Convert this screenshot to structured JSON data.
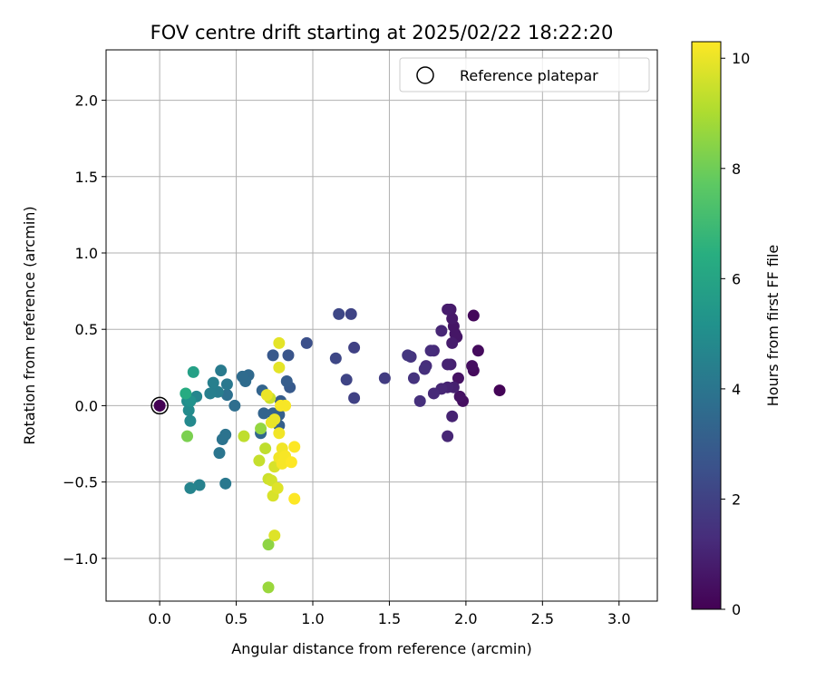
{
  "chart_data": {
    "type": "scatter",
    "title": "FOV centre drift starting at 2025/02/22 18:22:20",
    "xlabel": "Angular distance from reference (arcmin)",
    "ylabel": "Rotation from reference (arcmin)",
    "xlim": [
      -0.35,
      3.25
    ],
    "ylim": [
      -1.28,
      2.33
    ],
    "xticks": [
      0.0,
      0.5,
      1.0,
      1.5,
      2.0,
      2.5,
      3.0
    ],
    "xtick_labels": [
      "0.0",
      "0.5",
      "1.0",
      "1.5",
      "2.0",
      "2.5",
      "3.0"
    ],
    "yticks": [
      -1.0,
      -0.5,
      0.0,
      0.5,
      1.0,
      1.5,
      2.0
    ],
    "ytick_labels": [
      "−1.0",
      "−0.5",
      "0.0",
      "0.5",
      "1.0",
      "1.5",
      "2.0"
    ],
    "grid": true,
    "legend": {
      "placement": "upper-right",
      "entries": [
        "Reference platepar"
      ]
    },
    "reference_point": {
      "x": 0.0,
      "y": 0.0,
      "hours": 0
    },
    "colorbar": {
      "label": "Hours from first FF file",
      "min": 0,
      "max": 10.3,
      "ticks": [
        0,
        2,
        4,
        6,
        8,
        10
      ],
      "tick_labels": [
        "0",
        "2",
        "4",
        "6",
        "8",
        "10"
      ],
      "colormap": "viridis"
    },
    "series": [
      {
        "points": [
          {
            "x": 0.0,
            "y": 0.0,
            "h": 0.0
          },
          {
            "x": 2.22,
            "y": 0.1,
            "h": 0.1
          },
          {
            "x": 2.05,
            "y": 0.59,
            "h": 0.2
          },
          {
            "x": 2.08,
            "y": 0.36,
            "h": 0.3
          },
          {
            "x": 2.05,
            "y": 0.23,
            "h": 0.3
          },
          {
            "x": 2.04,
            "y": 0.26,
            "h": 0.4
          },
          {
            "x": 1.98,
            "y": 0.03,
            "h": 0.4
          },
          {
            "x": 1.96,
            "y": 0.06,
            "h": 0.5
          },
          {
            "x": 1.95,
            "y": 0.18,
            "h": 0.5
          },
          {
            "x": 1.94,
            "y": 0.45,
            "h": 0.6
          },
          {
            "x": 1.93,
            "y": 0.47,
            "h": 0.6
          },
          {
            "x": 1.92,
            "y": 0.52,
            "h": 0.6
          },
          {
            "x": 1.91,
            "y": 0.57,
            "h": 0.7
          },
          {
            "x": 1.9,
            "y": 0.63,
            "h": 0.7
          },
          {
            "x": 1.88,
            "y": 0.63,
            "h": 0.8
          },
          {
            "x": 1.91,
            "y": 0.41,
            "h": 0.8
          },
          {
            "x": 1.9,
            "y": 0.27,
            "h": 0.9
          },
          {
            "x": 1.92,
            "y": 0.12,
            "h": 0.9
          },
          {
            "x": 1.88,
            "y": 0.12,
            "h": 1.0
          },
          {
            "x": 1.88,
            "y": 0.27,
            "h": 1.0
          },
          {
            "x": 1.91,
            "y": -0.07,
            "h": 1.0
          },
          {
            "x": 1.88,
            "y": -0.2,
            "h": 1.1
          },
          {
            "x": 1.84,
            "y": 0.49,
            "h": 1.1
          },
          {
            "x": 1.84,
            "y": 0.11,
            "h": 1.1
          },
          {
            "x": 1.79,
            "y": 0.08,
            "h": 1.2
          },
          {
            "x": 1.79,
            "y": 0.36,
            "h": 1.2
          },
          {
            "x": 1.77,
            "y": 0.36,
            "h": 1.3
          },
          {
            "x": 1.74,
            "y": 0.26,
            "h": 1.3
          },
          {
            "x": 1.73,
            "y": 0.24,
            "h": 1.4
          },
          {
            "x": 1.7,
            "y": 0.03,
            "h": 1.4
          },
          {
            "x": 1.66,
            "y": 0.18,
            "h": 1.5
          },
          {
            "x": 1.64,
            "y": 0.32,
            "h": 1.5
          },
          {
            "x": 1.62,
            "y": 0.33,
            "h": 1.6
          },
          {
            "x": 1.47,
            "y": 0.18,
            "h": 1.8
          },
          {
            "x": 1.27,
            "y": 0.05,
            "h": 2.0
          },
          {
            "x": 1.27,
            "y": 0.38,
            "h": 2.0
          },
          {
            "x": 1.25,
            "y": 0.6,
            "h": 2.1
          },
          {
            "x": 1.22,
            "y": 0.17,
            "h": 2.1
          },
          {
            "x": 1.17,
            "y": 0.6,
            "h": 2.2
          },
          {
            "x": 1.15,
            "y": 0.31,
            "h": 2.2
          },
          {
            "x": 0.96,
            "y": 0.41,
            "h": 2.5
          },
          {
            "x": 0.84,
            "y": 0.33,
            "h": 2.7
          },
          {
            "x": 0.74,
            "y": 0.33,
            "h": 2.8
          },
          {
            "x": 0.85,
            "y": 0.12,
            "h": 2.9
          },
          {
            "x": 0.83,
            "y": 0.16,
            "h": 3.0
          },
          {
            "x": 0.79,
            "y": 0.03,
            "h": 3.0
          },
          {
            "x": 0.78,
            "y": -0.06,
            "h": 3.1
          },
          {
            "x": 0.78,
            "y": -0.13,
            "h": 3.1
          },
          {
            "x": 0.74,
            "y": -0.05,
            "h": 3.2
          },
          {
            "x": 0.68,
            "y": -0.05,
            "h": 3.3
          },
          {
            "x": 0.67,
            "y": 0.1,
            "h": 3.3
          },
          {
            "x": 0.66,
            "y": -0.18,
            "h": 3.4
          },
          {
            "x": 0.58,
            "y": 0.2,
            "h": 3.5
          },
          {
            "x": 0.56,
            "y": 0.16,
            "h": 3.6
          },
          {
            "x": 0.54,
            "y": 0.19,
            "h": 3.6
          },
          {
            "x": 0.49,
            "y": 0.0,
            "h": 3.7
          },
          {
            "x": 0.44,
            "y": 0.07,
            "h": 3.8
          },
          {
            "x": 0.43,
            "y": -0.19,
            "h": 3.9
          },
          {
            "x": 0.41,
            "y": -0.22,
            "h": 3.9
          },
          {
            "x": 0.39,
            "y": -0.31,
            "h": 4.0
          },
          {
            "x": 0.43,
            "y": -0.51,
            "h": 4.1
          },
          {
            "x": 0.44,
            "y": 0.14,
            "h": 4.1
          },
          {
            "x": 0.4,
            "y": 0.23,
            "h": 4.2
          },
          {
            "x": 0.38,
            "y": 0.09,
            "h": 4.3
          },
          {
            "x": 0.35,
            "y": 0.15,
            "h": 4.4
          },
          {
            "x": 0.33,
            "y": 0.08,
            "h": 4.4
          },
          {
            "x": 0.26,
            "y": -0.52,
            "h": 4.5
          },
          {
            "x": 0.2,
            "y": -0.54,
            "h": 4.6
          },
          {
            "x": 0.24,
            "y": 0.06,
            "h": 4.7
          },
          {
            "x": 0.2,
            "y": -0.1,
            "h": 4.8
          },
          {
            "x": 0.19,
            "y": -0.03,
            "h": 4.9
          },
          {
            "x": 0.18,
            "y": 0.03,
            "h": 5.0
          },
          {
            "x": 0.2,
            "y": 0.03,
            "h": 5.2
          },
          {
            "x": 0.22,
            "y": 0.22,
            "h": 5.8
          },
          {
            "x": 0.17,
            "y": 0.08,
            "h": 6.3
          },
          {
            "x": 0.18,
            "y": -0.2,
            "h": 8.2
          },
          {
            "x": 0.66,
            "y": -0.15,
            "h": 8.6
          },
          {
            "x": 0.71,
            "y": -0.91,
            "h": 8.5
          },
          {
            "x": 0.71,
            "y": -1.19,
            "h": 8.7
          },
          {
            "x": 0.55,
            "y": -0.2,
            "h": 9.3
          },
          {
            "x": 0.65,
            "y": -0.36,
            "h": 9.4
          },
          {
            "x": 0.69,
            "y": -0.28,
            "h": 9.3
          },
          {
            "x": 0.71,
            "y": -0.48,
            "h": 9.5
          },
          {
            "x": 0.72,
            "y": 0.05,
            "h": 9.5
          },
          {
            "x": 0.73,
            "y": -0.49,
            "h": 9.6
          },
          {
            "x": 0.74,
            "y": -0.59,
            "h": 9.7
          },
          {
            "x": 0.75,
            "y": -0.4,
            "h": 9.7
          },
          {
            "x": 0.75,
            "y": -0.85,
            "h": 9.8
          },
          {
            "x": 0.77,
            "y": -0.54,
            "h": 9.8
          },
          {
            "x": 0.78,
            "y": 0.41,
            "h": 9.9
          },
          {
            "x": 0.78,
            "y": 0.25,
            "h": 9.9
          },
          {
            "x": 0.7,
            "y": 0.07,
            "h": 10.0
          },
          {
            "x": 0.73,
            "y": -0.11,
            "h": 10.0
          },
          {
            "x": 0.75,
            "y": -0.09,
            "h": 10.0
          },
          {
            "x": 0.78,
            "y": -0.18,
            "h": 10.1
          },
          {
            "x": 0.78,
            "y": -0.34,
            "h": 10.1
          },
          {
            "x": 0.8,
            "y": -0.28,
            "h": 10.1
          },
          {
            "x": 0.8,
            "y": -0.38,
            "h": 10.2
          },
          {
            "x": 0.82,
            "y": -0.33,
            "h": 10.2
          },
          {
            "x": 0.82,
            "y": 0.0,
            "h": 10.2
          },
          {
            "x": 0.79,
            "y": 0.0,
            "h": 10.2
          },
          {
            "x": 0.86,
            "y": -0.37,
            "h": 10.3
          },
          {
            "x": 0.88,
            "y": -0.27,
            "h": 10.3
          },
          {
            "x": 0.88,
            "y": -0.61,
            "h": 10.3
          }
        ]
      }
    ]
  }
}
